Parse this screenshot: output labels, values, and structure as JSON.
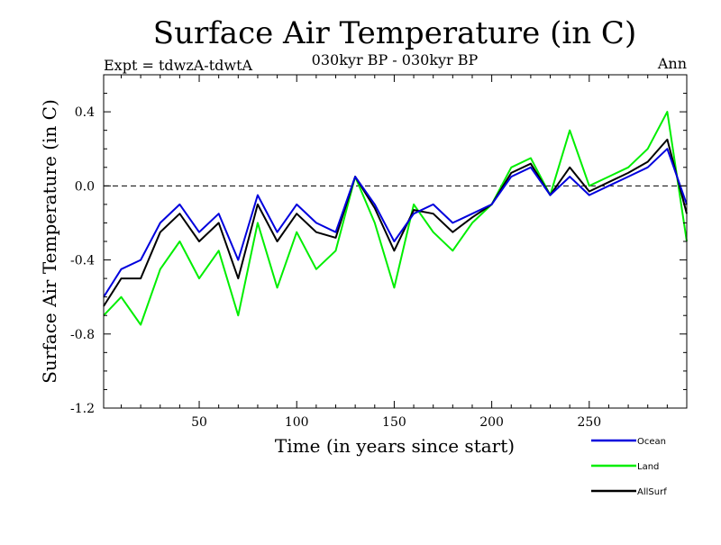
{
  "chart_data": {
    "type": "line",
    "title": "Surface Air Temperature (in C)",
    "subtitle_left": "Expt = tdwzA-tdwtA",
    "subtitle_center": "030kyr BP - 030kyr BP",
    "subtitle_right": "Ann",
    "xlabel": "Time (in years since start)",
    "ylabel": "Surface Air Temperature (in C)",
    "xlim": [
      1,
      300
    ],
    "ylim": [
      -1.2,
      0.6
    ],
    "xticks": [
      50,
      100,
      150,
      200,
      250
    ],
    "xtick_labels": [
      "50",
      "100",
      "150",
      "200",
      "250"
    ],
    "yticks": [
      -1.2,
      -0.8,
      -0.4,
      0.0,
      0.4
    ],
    "ytick_labels": [
      "-1.2",
      "-0.8",
      "-0.4",
      "0.0",
      "0.4"
    ],
    "reference_line": 0.0,
    "legend_position": "bottom-right",
    "series": [
      {
        "name": "Ocean",
        "color": "#0000dd",
        "x": [
          1,
          10,
          20,
          30,
          40,
          50,
          60,
          70,
          80,
          90,
          100,
          110,
          120,
          130,
          140,
          150,
          160,
          170,
          180,
          190,
          200,
          210,
          220,
          230,
          240,
          250,
          260,
          270,
          280,
          290,
          300
        ],
        "values": [
          -0.6,
          -0.45,
          -0.4,
          -0.2,
          -0.1,
          -0.25,
          -0.15,
          -0.4,
          -0.05,
          -0.25,
          -0.1,
          -0.2,
          -0.25,
          0.05,
          -0.1,
          -0.3,
          -0.15,
          -0.1,
          -0.2,
          -0.15,
          -0.1,
          0.05,
          0.1,
          -0.05,
          0.05,
          -0.05,
          0.0,
          0.05,
          0.1,
          0.2,
          -0.1
        ]
      },
      {
        "name": "Land",
        "color": "#00ee00",
        "x": [
          1,
          10,
          20,
          30,
          40,
          50,
          60,
          70,
          80,
          90,
          100,
          110,
          120,
          130,
          140,
          150,
          160,
          170,
          180,
          190,
          200,
          210,
          220,
          230,
          240,
          250,
          260,
          270,
          280,
          290,
          300
        ],
        "values": [
          -0.7,
          -0.6,
          -0.75,
          -0.45,
          -0.3,
          -0.5,
          -0.35,
          -0.7,
          -0.2,
          -0.55,
          -0.25,
          -0.45,
          -0.35,
          0.05,
          -0.2,
          -0.55,
          -0.1,
          -0.25,
          -0.35,
          -0.2,
          -0.1,
          0.1,
          0.15,
          -0.05,
          0.3,
          0.0,
          0.05,
          0.1,
          0.2,
          0.4,
          -0.3
        ]
      },
      {
        "name": "AllSurf",
        "color": "#000000",
        "x": [
          1,
          10,
          20,
          30,
          40,
          50,
          60,
          70,
          80,
          90,
          100,
          110,
          120,
          130,
          140,
          150,
          160,
          170,
          180,
          190,
          200,
          210,
          220,
          230,
          240,
          250,
          260,
          270,
          280,
          290,
          300
        ],
        "values": [
          -0.65,
          -0.5,
          -0.5,
          -0.25,
          -0.15,
          -0.3,
          -0.2,
          -0.5,
          -0.1,
          -0.3,
          -0.15,
          -0.25,
          -0.28,
          0.05,
          -0.12,
          -0.35,
          -0.13,
          -0.15,
          -0.25,
          -0.17,
          -0.1,
          0.07,
          0.12,
          -0.05,
          0.1,
          -0.03,
          0.02,
          0.07,
          0.13,
          0.25,
          -0.15
        ]
      }
    ]
  }
}
